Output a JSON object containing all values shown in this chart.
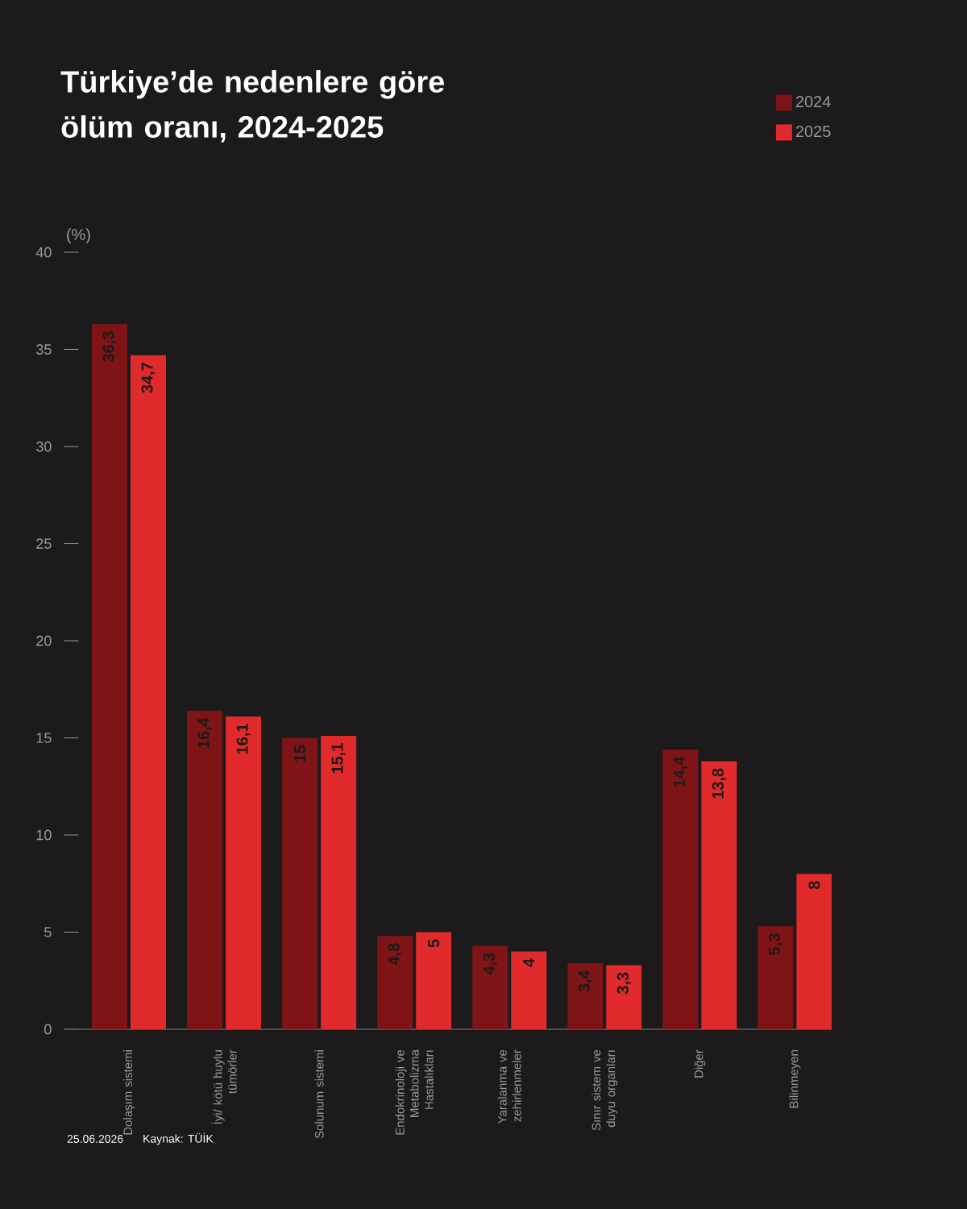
{
  "chart_data": {
    "type": "bar",
    "title": "Türkiye’de nedenlere göre ölüm oranı, 2024-2025",
    "ylabel": "(%)",
    "categories": [
      "Dolaşım sistemi",
      "İyi/ kötü huylu tümörler",
      "Solunum sistemi",
      "Endokrinoloji ve Metabolizma Hastalıkları",
      "Yaralanma ve zehirlenmeler",
      "Sınır sistem ve duyu organları",
      "Diğer",
      "Bilinmeyen"
    ],
    "series": [
      {
        "name": "2024",
        "color": "#7f1416",
        "values": [
          36.3,
          16.4,
          15,
          4.8,
          4.3,
          3.4,
          14.4,
          5.3
        ],
        "value_labels": [
          "36,3",
          "16,4",
          "15",
          "4,8",
          "4,3",
          "3,4",
          "14,4",
          "5,3"
        ]
      },
      {
        "name": "2025",
        "color": "#e02a2b",
        "values": [
          34.7,
          16.1,
          15.1,
          5,
          4,
          3.3,
          13.8,
          8
        ],
        "value_labels": [
          "34,7",
          "16,1",
          "15,1",
          "5",
          "4",
          "3,3",
          "13,8",
          "8"
        ]
      }
    ],
    "ylim": [
      0,
      40
    ],
    "yticks": [
      0,
      5,
      10,
      15,
      20,
      25,
      30,
      35,
      40
    ],
    "legend": "top right",
    "grid": false,
    "annotations": [
      "25.06.2026",
      "Kaynak: TÜİK"
    ]
  }
}
